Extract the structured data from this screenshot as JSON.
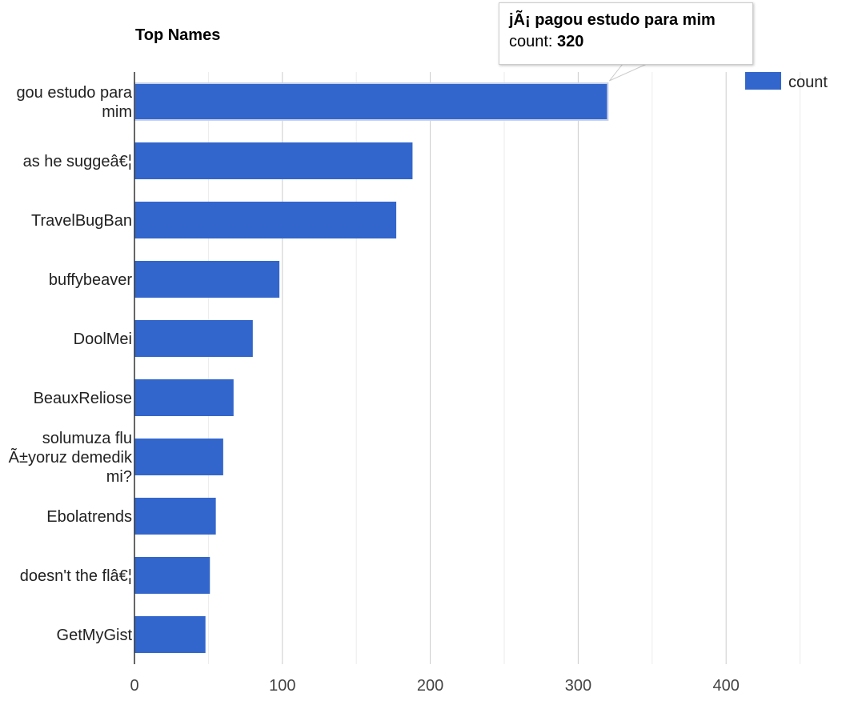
{
  "chart_data": {
    "type": "bar",
    "orientation": "horizontal",
    "title": "Top Names",
    "categories": [
      "jÃ¡ pagou estudo para mim",
      "as he suggeâ€¦",
      "TravelBugBan",
      "buffybeaver",
      "DoolMei",
      "BeauxReliose",
      "solumuza flu Ã±yoruz demedik mi?",
      "Ebolatrends",
      "doesn't the flâ€¦",
      "GetMyGist"
    ],
    "category_display": [
      [
        "gou estudo para",
        "mim"
      ],
      [
        "as he suggeâ€¦"
      ],
      [
        "TravelBugBan"
      ],
      [
        "buffybeaver"
      ],
      [
        "DoolMei"
      ],
      [
        "BeauxReliose"
      ],
      [
        "solumuza flu",
        "Ã±yoruz demedik",
        "mi?"
      ],
      [
        "Ebolatrends"
      ],
      [
        "doesn't the flâ€¦"
      ],
      [
        "GetMyGist"
      ]
    ],
    "series": [
      {
        "name": "count",
        "color": "#3366cc",
        "values": [
          320,
          188,
          177,
          98,
          80,
          67,
          60,
          55,
          51,
          48
        ]
      }
    ],
    "xlim": [
      0,
      450
    ],
    "xticks": [
      "0",
      "100",
      "200",
      "300",
      "400"
    ],
    "grid": true,
    "legend": "top-right",
    "tooltip": {
      "title": "jÃ¡ pagou estudo para mim",
      "label": "count:",
      "value": "320"
    }
  }
}
